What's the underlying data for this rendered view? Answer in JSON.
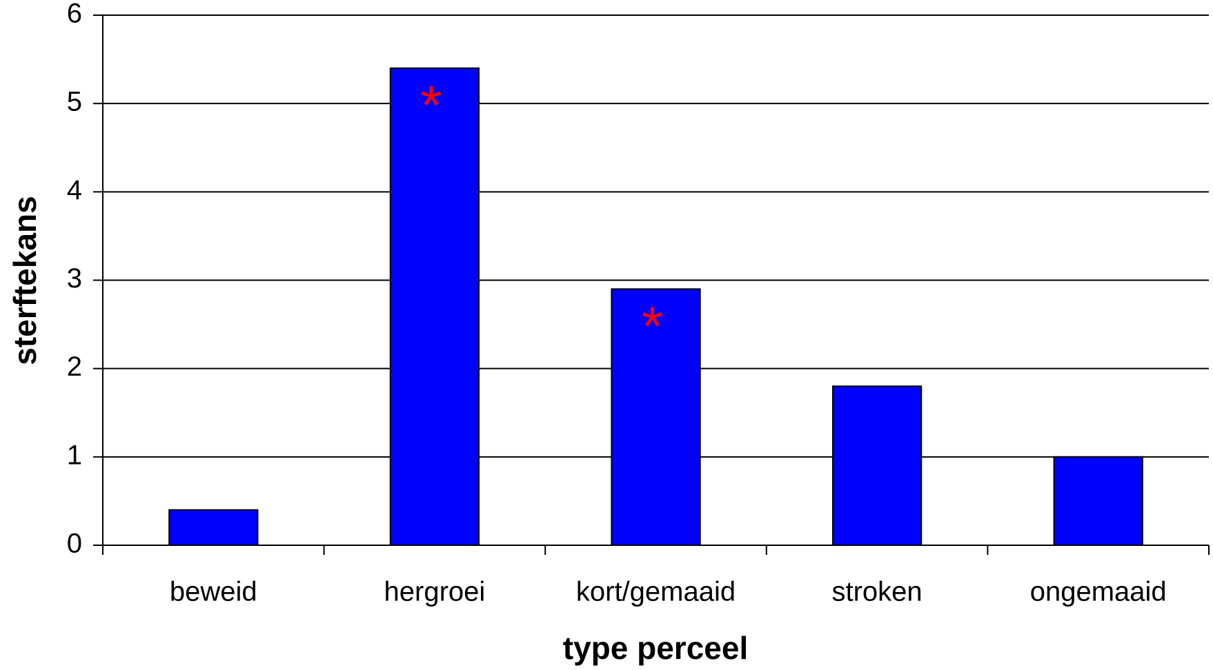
{
  "chart_data": {
    "type": "bar",
    "xlabel": "type perceel",
    "ylabel": "sterftekans",
    "categories": [
      "beweid",
      "hergroei",
      "kort/gemaaid",
      "stroken",
      "ongemaaid"
    ],
    "values": [
      0.4,
      5.4,
      2.9,
      1.8,
      1.0
    ],
    "color": "#0000ff",
    "ylim": [
      0,
      6
    ],
    "yticks": [
      0,
      1,
      2,
      3,
      4,
      5,
      6
    ],
    "grid": true,
    "annotations": [
      {
        "text": "*",
        "category": "hergroei",
        "color": "#ff0000"
      },
      {
        "text": "*",
        "category": "kort/gemaaid",
        "color": "#ff0000"
      }
    ]
  }
}
